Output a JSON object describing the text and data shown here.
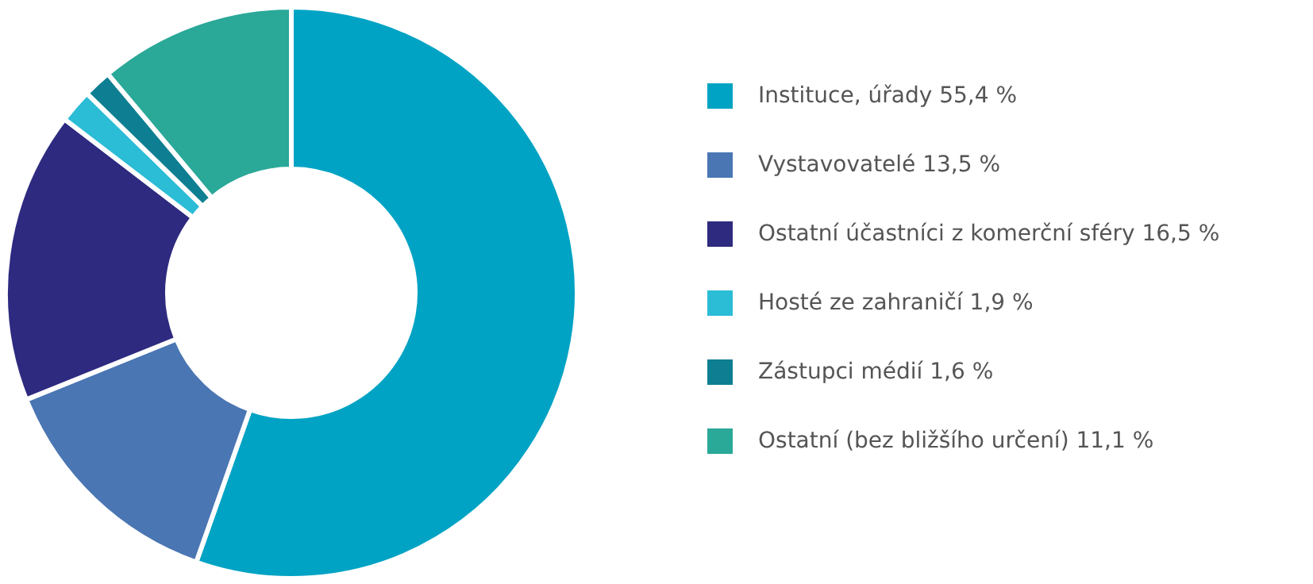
{
  "chart_data": {
    "type": "donut",
    "categories": [
      "Instituce, úřady",
      "Vystavovatelé",
      "Ostatní účastníci z komerční sféry",
      "Hosté ze zahraničí",
      "Zástupci médií",
      "Ostatní (bez bližšího určení)"
    ],
    "values": [
      55.4,
      13.5,
      16.5,
      1.9,
      1.6,
      11.1
    ],
    "value_labels": [
      "55,4 %",
      "13,5 %",
      "16,5 %",
      "1,9 %",
      "1,6 %",
      "11,1 %"
    ],
    "colors": [
      "#00a3c4",
      "#4a76b3",
      "#2e2a80",
      "#2bbcd6",
      "#0e7f92",
      "#2aa898"
    ],
    "legend": "right"
  }
}
